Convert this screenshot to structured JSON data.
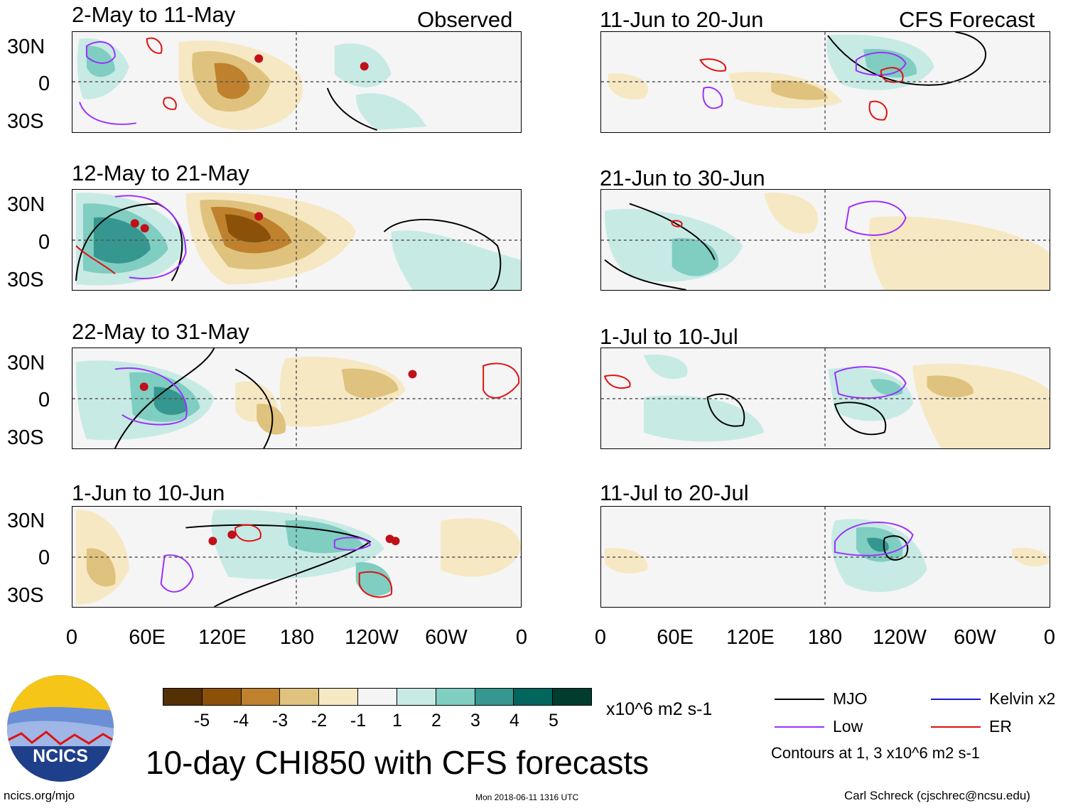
{
  "figure": {
    "main_title": "10-day CHI850 with CFS forecasts",
    "observed_label": "Observed",
    "forecast_label": "CFS Forecast",
    "source_url": "ncics.org/mjo",
    "timestamp": "Mon 2018-06-11 1316 UTC",
    "author": "Carl Schreck (cjschrec@ncsu.edu)",
    "logo_text": "NCICS"
  },
  "axes": {
    "y_ticks": [
      "30N",
      "0",
      "30S"
    ],
    "x_ticks": [
      "0",
      "60E",
      "120E",
      "180",
      "120W",
      "60W",
      "0"
    ]
  },
  "observed_panels": [
    {
      "title": "2-May to 11-May"
    },
    {
      "title": "12-May to 21-May"
    },
    {
      "title": "22-May to 31-May"
    },
    {
      "title": "1-Jun to 10-Jun"
    }
  ],
  "forecast_panels": [
    {
      "title": "11-Jun to 20-Jun"
    },
    {
      "title": "21-Jun to 30-Jun"
    },
    {
      "title": "1-Jul to 10-Jul"
    },
    {
      "title": "11-Jul to 20-Jul"
    }
  ],
  "colorbar": {
    "units": "x10^6 m2 s-1",
    "ticks": [
      "-5",
      "-4",
      "-3",
      "-2",
      "-1",
      "1",
      "2",
      "3",
      "4",
      "5"
    ],
    "colors": [
      "#543005",
      "#8c5109",
      "#bf812d",
      "#dfc27d",
      "#f6e8c3",
      "#f5f5f5",
      "#c7eae5",
      "#80cdc1",
      "#35978f",
      "#01665e",
      "#003c30"
    ]
  },
  "legend": {
    "items": [
      {
        "label": "MJO",
        "color": "#000000"
      },
      {
        "label": "Kelvin x2",
        "color": "#1a1ad0"
      },
      {
        "label": "Low",
        "color": "#9b30ff"
      },
      {
        "label": "ER",
        "color": "#e01010"
      }
    ],
    "note": "Contours at 1, 3 x10^6 m2 s-1"
  }
}
